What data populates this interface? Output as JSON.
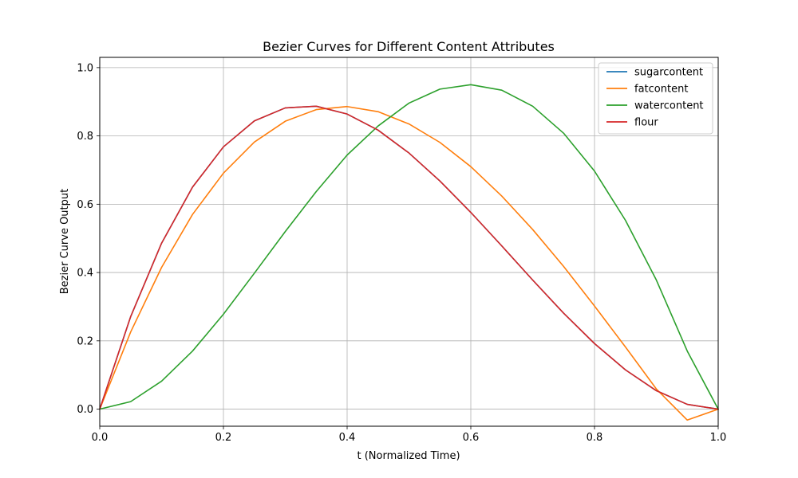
{
  "chart_data": {
    "type": "line",
    "title": "Bezier Curves for Different Content Attributes",
    "xlabel": "t (Normalized Time)",
    "ylabel": "Bezier Curve Output",
    "xlim": [
      0,
      1
    ],
    "ylim": [
      -0.05,
      1.03
    ],
    "xticks": [
      0,
      0.2,
      0.4,
      0.6,
      0.8,
      1.0
    ],
    "xtick_labels": [
      "0.0",
      "0.2",
      "0.4",
      "0.6",
      "0.8",
      "1.0"
    ],
    "yticks": [
      0,
      0.2,
      0.4,
      0.6,
      0.8,
      1.0
    ],
    "ytick_labels": [
      "0.0",
      "0.2",
      "0.4",
      "0.6",
      "0.8",
      "1.0"
    ],
    "grid": true,
    "legend_position": "top-right",
    "x": [
      0,
      0.05,
      0.1,
      0.15,
      0.2,
      0.25,
      0.3,
      0.35,
      0.4,
      0.45,
      0.5,
      0.55,
      0.6,
      0.65,
      0.7,
      0.75,
      0.8,
      0.85,
      0.9,
      0.95,
      1.0
    ],
    "series": [
      {
        "name": "sugarcontent",
        "color": "#1f77b4",
        "values": [
          0,
          0.271,
          0.486,
          0.65,
          0.768,
          0.844,
          0.882,
          0.887,
          0.864,
          0.817,
          0.75,
          0.668,
          0.576,
          0.478,
          0.378,
          0.281,
          0.192,
          0.115,
          0.054,
          0.014,
          0
        ]
      },
      {
        "name": "fatcontent",
        "color": "#ff7f0e",
        "values": [
          0,
          0.226,
          0.415,
          0.57,
          0.691,
          0.782,
          0.843,
          0.877,
          0.886,
          0.871,
          0.835,
          0.781,
          0.71,
          0.624,
          0.526,
          0.418,
          0.302,
          0.182,
          0.059,
          -0.032,
          0
        ]
      },
      {
        "name": "watercontent",
        "color": "#2ca02c",
        "values": [
          0,
          0.022,
          0.082,
          0.17,
          0.278,
          0.398,
          0.52,
          0.637,
          0.744,
          0.829,
          0.896,
          0.937,
          0.95,
          0.934,
          0.887,
          0.808,
          0.697,
          0.553,
          0.378,
          0.17,
          0
        ]
      },
      {
        "name": "flour",
        "color": "#d62728",
        "values": [
          0,
          0.271,
          0.486,
          0.65,
          0.768,
          0.844,
          0.882,
          0.887,
          0.864,
          0.817,
          0.75,
          0.668,
          0.576,
          0.478,
          0.378,
          0.281,
          0.192,
          0.115,
          0.054,
          0.014,
          0
        ]
      }
    ]
  }
}
